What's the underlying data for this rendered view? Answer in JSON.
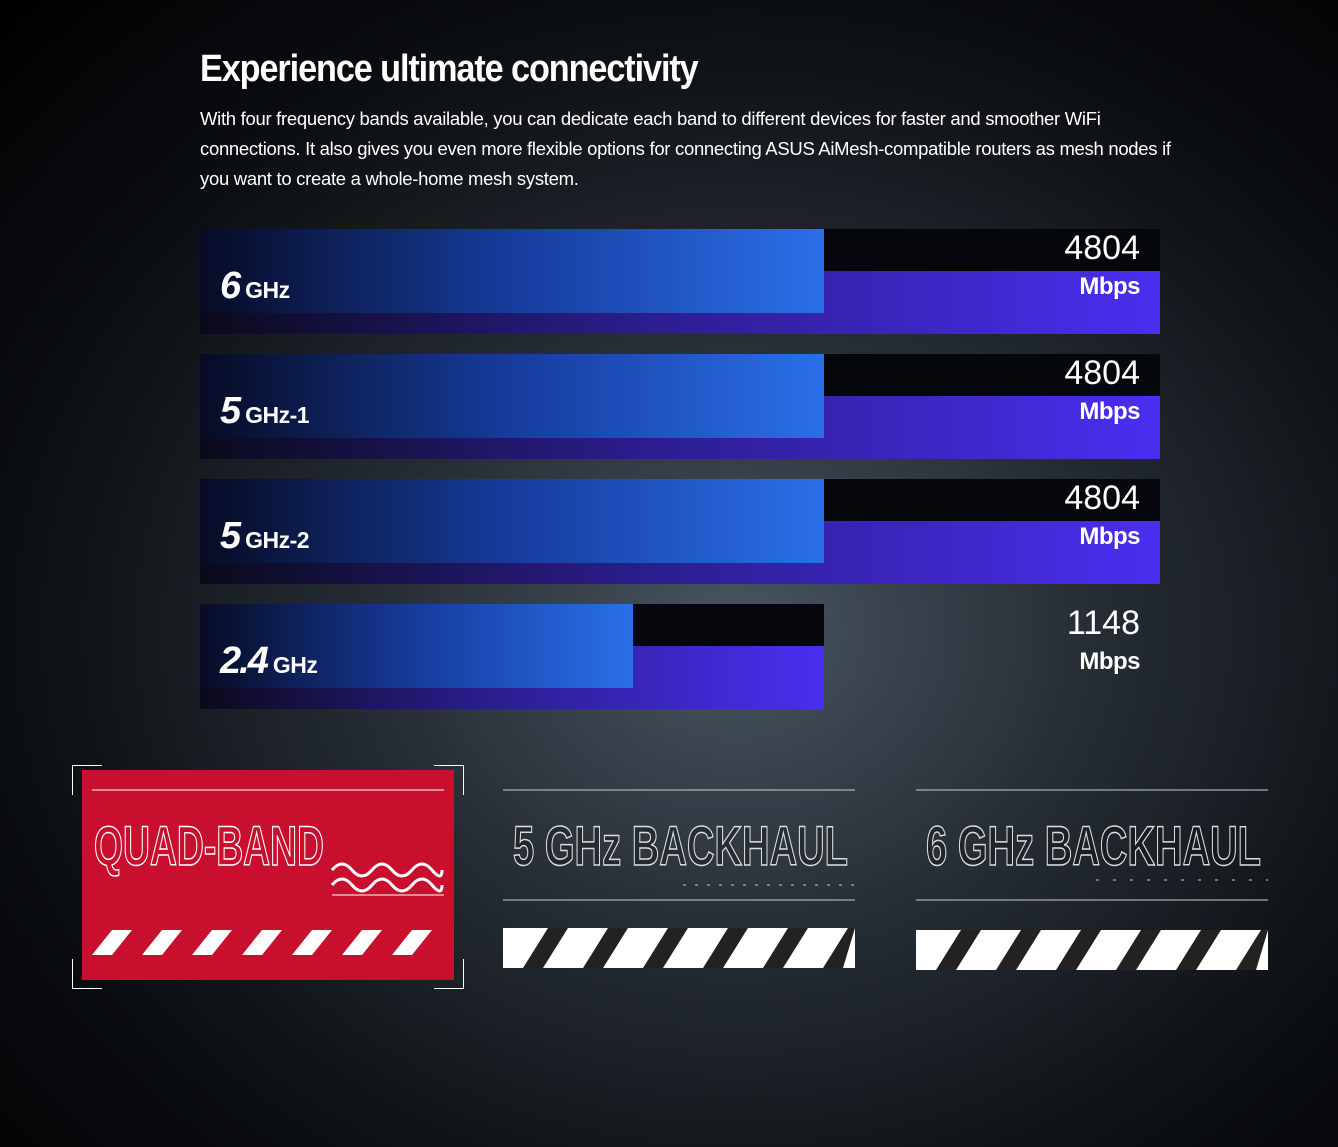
{
  "header": {
    "title": "Experience ultimate connectivity",
    "text": "With four frequency bands available, you can dedicate each band to different devices for faster and smoother WiFi connections. It also gives you even more flexible options for connecting ASUS AiMesh-compatible routers as mesh nodes if you want to create a whole-home mesh system."
  },
  "bands": [
    {
      "band": "6",
      "unit": "GHz",
      "speed": 4804,
      "speed_unit": "Mbps"
    },
    {
      "band": "5",
      "unit": "GHz-1",
      "speed": 4804,
      "speed_unit": "Mbps"
    },
    {
      "band": "5",
      "unit": "GHz-2",
      "speed": 4804,
      "speed_unit": "Mbps"
    },
    {
      "band": "2.4",
      "unit": "GHz",
      "speed": 1148,
      "speed_unit": "Mbps"
    }
  ],
  "badges": [
    "QUAD-BAND",
    "5 GHz BACKHAUL",
    "6 GHz BACKHAUL"
  ]
}
